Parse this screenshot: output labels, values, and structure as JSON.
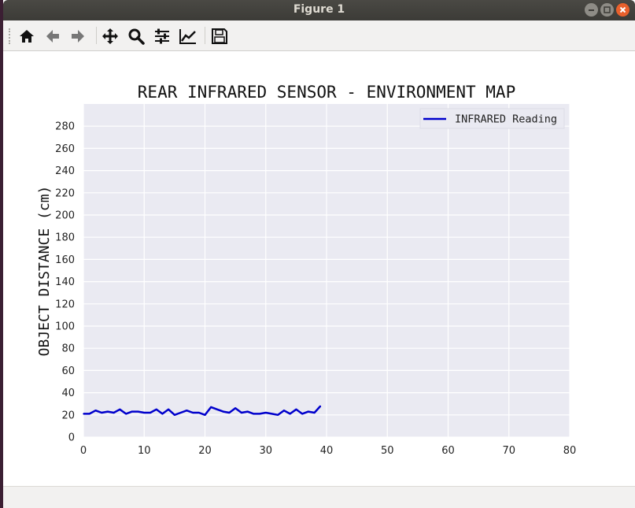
{
  "window": {
    "title": "Figure 1"
  },
  "toolbar": {
    "buttons": [
      {
        "id": "home",
        "icon": "home-icon"
      },
      {
        "id": "back",
        "icon": "arrow-left-icon"
      },
      {
        "id": "forward",
        "icon": "arrow-right-icon"
      },
      {
        "id": "pan",
        "icon": "move-icon"
      },
      {
        "id": "zoom",
        "icon": "magnifier-icon"
      },
      {
        "id": "subplots",
        "icon": "sliders-icon"
      },
      {
        "id": "axes",
        "icon": "chart-line-icon"
      },
      {
        "id": "save",
        "icon": "floppy-disk-icon"
      }
    ]
  },
  "colors": {
    "line": "#0000cc",
    "plot_bg": "#eaeaf2",
    "grid": "#ffffff",
    "close_button": "#e9602c"
  },
  "chart_data": {
    "type": "line",
    "title": "REAR INFRARED SENSOR - ENVIRONMENT MAP",
    "xlabel": "",
    "ylabel": "OBJECT DISTANCE (cm)",
    "xlim": [
      0,
      80
    ],
    "ylim": [
      0,
      300
    ],
    "xticks": [
      0,
      10,
      20,
      30,
      40,
      50,
      60,
      70,
      80
    ],
    "yticks": [
      0,
      20,
      40,
      60,
      80,
      100,
      120,
      140,
      160,
      180,
      200,
      220,
      240,
      260,
      280
    ],
    "grid": true,
    "legend_position": "top-right",
    "series": [
      {
        "name": "INFRARED Reading",
        "x": [
          0,
          1,
          2,
          3,
          4,
          5,
          6,
          7,
          8,
          9,
          10,
          11,
          12,
          13,
          14,
          15,
          16,
          17,
          18,
          19,
          20,
          21,
          22,
          23,
          24,
          25,
          26,
          27,
          28,
          29,
          30,
          31,
          32,
          33,
          34,
          35,
          36,
          37,
          38,
          39
        ],
        "values": [
          21,
          21,
          24,
          22,
          23,
          22,
          25,
          21,
          23,
          23,
          22,
          22,
          25,
          21,
          25,
          20,
          22,
          24,
          22,
          22,
          20,
          27,
          25,
          23,
          22,
          26,
          22,
          23,
          21,
          21,
          22,
          21,
          20,
          24,
          21,
          25,
          21,
          23,
          22,
          28
        ]
      }
    ]
  }
}
